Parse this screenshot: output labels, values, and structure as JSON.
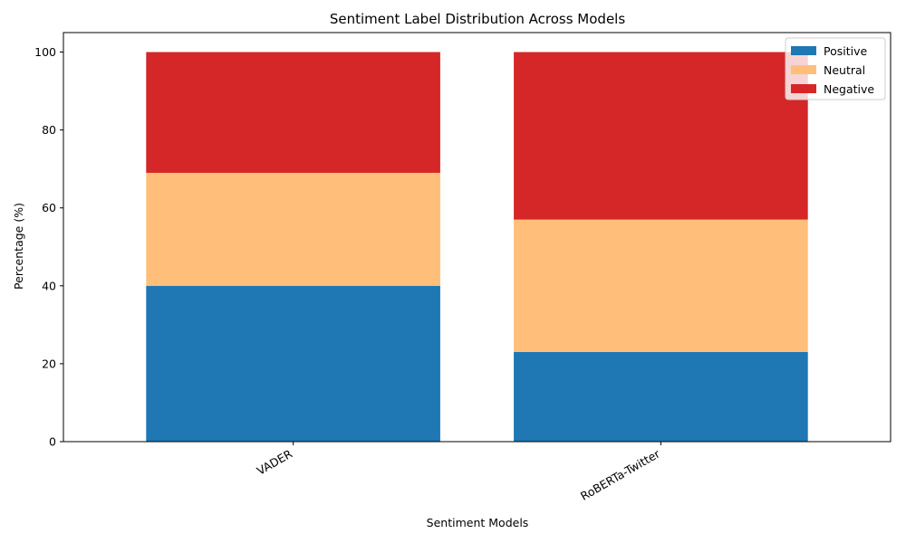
{
  "chart_data": {
    "type": "bar",
    "stacked": true,
    "title": "Sentiment Label Distribution Across Models",
    "xlabel": "Sentiment Models",
    "ylabel": "Percentage (%)",
    "categories": [
      "VADER",
      "RoBERTa-Twitter"
    ],
    "series": [
      {
        "name": "Positive",
        "values": [
          40,
          23
        ],
        "color": "#1f77b4"
      },
      {
        "name": "Neutral",
        "values": [
          29,
          34
        ],
        "color": "#ffbe7a"
      },
      {
        "name": "Negative",
        "values": [
          31,
          43
        ],
        "color": "#d62728"
      }
    ],
    "ylim": [
      0,
      105
    ],
    "yticks": [
      0,
      20,
      40,
      60,
      80,
      100
    ],
    "grid": false,
    "legend_position": "top-right"
  }
}
